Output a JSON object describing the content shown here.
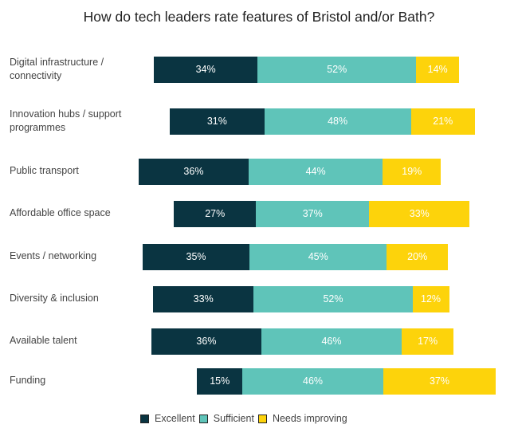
{
  "chart_data": {
    "type": "bar",
    "orientation": "horizontal",
    "stacked": true,
    "title": "How do tech leaders rate features of Bristol and/or Bath?",
    "categories": [
      "Digital infrastructure / connectivity",
      "Innovation hubs / support programmes",
      "Public transport",
      "Affordable office space",
      "Events / networking",
      "Diversity & inclusion",
      "Available talent",
      "Funding"
    ],
    "series": [
      {
        "name": "Excellent",
        "color": "#0a3441",
        "values": [
          34,
          31,
          36,
          27,
          35,
          33,
          36,
          15
        ]
      },
      {
        "name": "Sufficient",
        "color": "#5fc4b9",
        "values": [
          52,
          48,
          44,
          37,
          45,
          52,
          46,
          46
        ]
      },
      {
        "name": "Needs improving",
        "color": "#fdd30b",
        "values": [
          14,
          21,
          19,
          33,
          20,
          12,
          17,
          37
        ]
      }
    ],
    "value_suffix": "%",
    "legend": "bottom",
    "grid": false
  }
}
